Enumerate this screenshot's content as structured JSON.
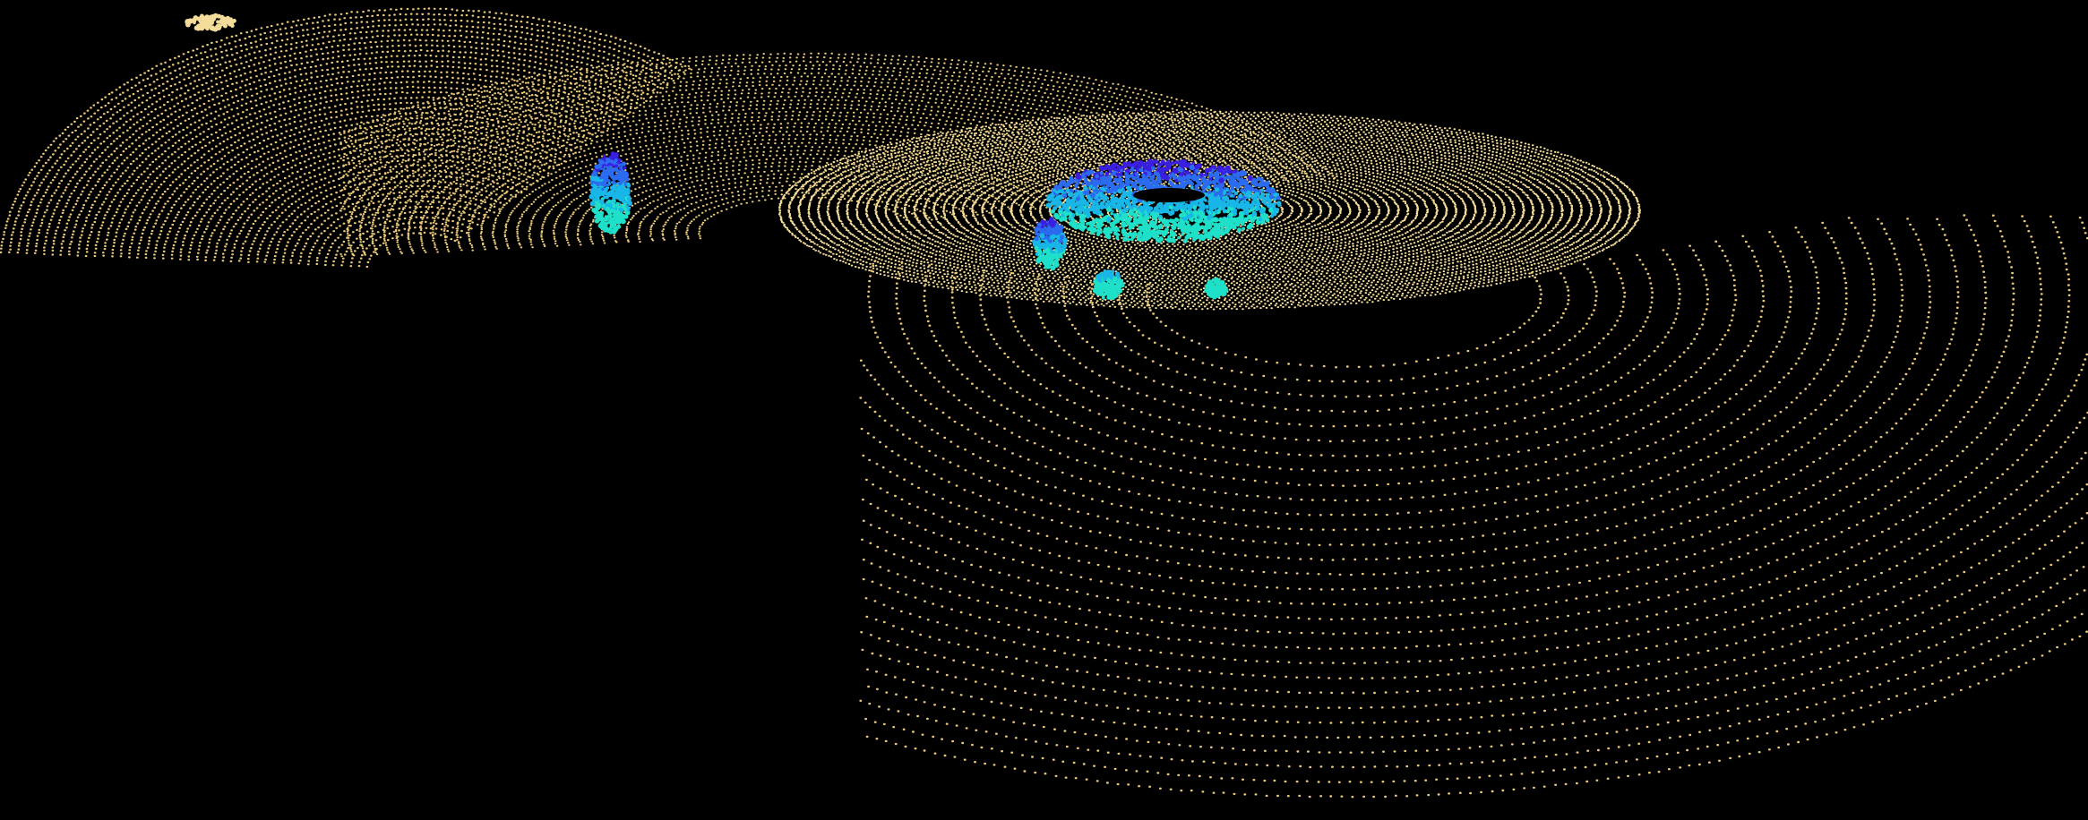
{
  "scene": {
    "background_color": "#000000",
    "ground_point_color": "#e8c77a",
    "ground_point_color_bright": "#f4dc9a",
    "object_colors": [
      "#3a1fe0",
      "#2b6bf0",
      "#19b6e8",
      "#1fe0c8"
    ],
    "icons": [
      "point-cloud-scan",
      "object-cluster"
    ]
  }
}
